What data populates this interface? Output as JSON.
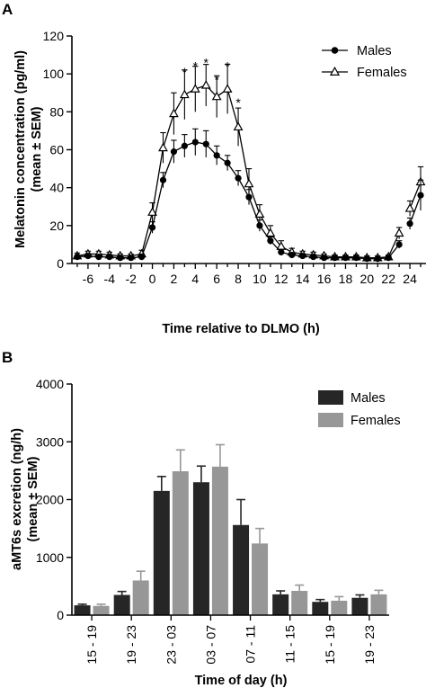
{
  "figure": {
    "panels": [
      "A",
      "B"
    ]
  },
  "chart_data": [
    {
      "type": "line",
      "panel": "A",
      "xlabel": "Time relative to DLMO (h)",
      "ylabel_lines": [
        "Melatonin concentration (pg/ml)",
        "(mean ± SEM)"
      ],
      "xlim": [
        -7.5,
        25.5
      ],
      "ylim": [
        0,
        120
      ],
      "xticks": [
        -6,
        -4,
        -2,
        0,
        2,
        4,
        6,
        8,
        10,
        12,
        14,
        16,
        18,
        20,
        22,
        24
      ],
      "yticks": [
        0,
        20,
        40,
        60,
        80,
        100,
        120
      ],
      "legend_position": "top-right",
      "grid": false,
      "series": [
        {
          "name": "Males",
          "marker": "filled-circle",
          "segments": [
            {
              "x": [
                -7,
                -6,
                -5,
                -4,
                -3,
                -2,
                -1,
                0,
                1,
                2,
                3,
                4,
                5,
                6,
                7,
                8,
                9,
                10,
                11,
                12,
                13,
                14,
                15,
                16,
                17,
                18,
                19,
                20,
                21,
                22,
                23
              ],
              "y": [
                3.5,
                4,
                3.5,
                3.5,
                3,
                3,
                3.5,
                19,
                44,
                59,
                62,
                64,
                63,
                57,
                53,
                45,
                35,
                20,
                12,
                6,
                4.5,
                4,
                3.5,
                3,
                3,
                3,
                3,
                2.5,
                2.5,
                3,
                10
              ],
              "err": [
                1,
                1,
                1,
                1,
                1,
                1,
                1.5,
                3,
                4,
                6,
                6,
                7,
                7,
                5,
                4,
                4,
                4,
                3,
                2,
                1.5,
                1,
                1,
                1,
                1,
                1,
                1,
                1,
                0.8,
                0.8,
                1,
                2
              ]
            },
            {
              "x": [
                24,
                25
              ],
              "y": [
                21,
                36
              ],
              "err": [
                3,
                8
              ]
            }
          ]
        },
        {
          "name": "Females",
          "marker": "open-triangle",
          "segments": [
            {
              "x": [
                -7,
                -6,
                -5,
                -4,
                -3,
                -2,
                -1,
                0,
                1,
                2,
                3,
                4,
                5,
                6,
                7,
                8,
                9,
                10,
                11,
                12,
                13,
                14,
                15,
                16,
                17,
                18,
                19,
                20,
                21,
                22,
                23
              ],
              "y": [
                4,
                5,
                5,
                4.5,
                4,
                4,
                5,
                27,
                61,
                79,
                89,
                92,
                94,
                88,
                92,
                72,
                42,
                26,
                16,
                9,
                6,
                5,
                4.5,
                4,
                3.5,
                3.5,
                3.5,
                3,
                3,
                3.5,
                16
              ],
              "err": [
                1.5,
                1.5,
                1.5,
                1.5,
                1,
                1,
                2,
                5,
                8,
                11,
                13,
                12,
                11,
                11,
                13,
                10,
                8,
                5,
                4,
                3,
                2,
                1.5,
                1.5,
                1,
                1,
                1,
                1,
                1,
                1,
                1,
                3
              ]
            },
            {
              "x": [
                24,
                25
              ],
              "y": [
                29,
                43
              ],
              "err": [
                4,
                8
              ]
            }
          ]
        }
      ],
      "annotations": [
        {
          "text": "*",
          "x": 3,
          "y": 101
        },
        {
          "text": "*",
          "x": 4,
          "y": 104
        },
        {
          "text": "*",
          "x": 5,
          "y": 106
        },
        {
          "text": "*",
          "x": 6,
          "y": 97
        },
        {
          "text": "*",
          "x": 7,
          "y": 104
        },
        {
          "text": "*",
          "x": 8,
          "y": 85
        }
      ]
    },
    {
      "type": "bar",
      "panel": "B",
      "xlabel": "Time of day (h)",
      "ylabel_lines": [
        "aMT6s excretion (ng/h)",
        "(mean ± SEM)"
      ],
      "categories": [
        "15 - 19",
        "19 - 23",
        "23 - 03",
        "03 - 07",
        "07 - 11",
        "11 - 15",
        "15 - 19",
        "19 - 23"
      ],
      "ylim": [
        0,
        4000
      ],
      "yticks": [
        0,
        1000,
        2000,
        3000,
        4000
      ],
      "legend_position": "top-right",
      "grid": false,
      "series": [
        {
          "name": "Males",
          "color": "#262626",
          "values": [
            170,
            350,
            2150,
            2300,
            1560,
            360,
            230,
            300
          ],
          "err": [
            20,
            60,
            250,
            280,
            440,
            60,
            40,
            50
          ]
        },
        {
          "name": "Females",
          "color": "#979797",
          "values": [
            160,
            600,
            2490,
            2570,
            1240,
            420,
            250,
            360
          ],
          "err": [
            30,
            160,
            370,
            380,
            260,
            100,
            70,
            70
          ]
        }
      ]
    }
  ]
}
